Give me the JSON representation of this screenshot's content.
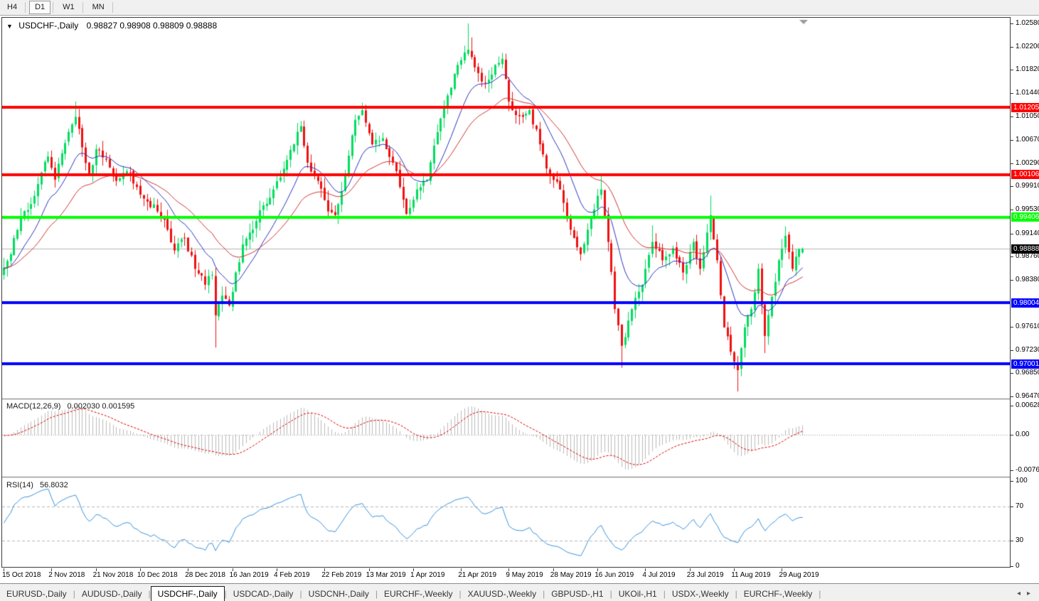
{
  "ui": {
    "toolbar": {
      "timeframes": [
        {
          "label": "H4",
          "active": false
        },
        {
          "label": "D1",
          "active": true
        },
        {
          "label": "W1",
          "active": false
        },
        {
          "label": "MN",
          "active": false
        }
      ]
    },
    "chart_header": {
      "dropdown_icon": "▼",
      "title": "USDCHF-,Daily",
      "ohlc": "0.98827 0.98908 0.98809 0.98888"
    },
    "tabs": {
      "items": [
        {
          "label": "EURUSD-,Daily",
          "active": false
        },
        {
          "label": "AUDUSD-,Daily",
          "active": false
        },
        {
          "label": "USDCHF-,Daily",
          "active": true
        },
        {
          "label": "USDCAD-,Daily",
          "active": false
        },
        {
          "label": "USDCNH-,Daily",
          "active": false
        },
        {
          "label": "EURCHF-,Weekly",
          "active": false
        },
        {
          "label": "XAUUSD-,Weekly",
          "active": false
        },
        {
          "label": "GBPUSD-,H1",
          "active": false
        },
        {
          "label": "UKOil-,H1",
          "active": false
        },
        {
          "label": "USDX-,Weekly",
          "active": false
        },
        {
          "label": "EURCHF-,Weekly",
          "active": false
        }
      ],
      "scroll_left": "◂",
      "scroll_right": "▸"
    }
  },
  "chart_data": {
    "type": "candlestick",
    "symbol": "USDCHF-",
    "timeframe": "Daily",
    "bars_total": 235,
    "last_bar": {
      "open": 0.98827,
      "high": 0.98908,
      "low": 0.98809,
      "close": 0.98888
    },
    "price_axis_ticks": [
      "1.02580",
      "1.02200",
      "1.01820",
      "1.01440",
      "1.01050",
      "1.00670",
      "1.00290",
      "0.99910",
      "0.99530",
      "0.99140",
      "0.98760",
      "0.98380",
      "0.97610",
      "0.97230",
      "0.96850",
      "0.96470"
    ],
    "levels": [
      {
        "price": 1.01205,
        "label": "1.01205",
        "color": "#ff0000"
      },
      {
        "price": 1.00106,
        "label": "1.00106",
        "color": "#ff0000"
      },
      {
        "price": 0.99406,
        "label": "0.99406",
        "color": "#00ff00"
      },
      {
        "price": 0.98004,
        "label": "0.98004",
        "color": "#0000ff"
      },
      {
        "price": 0.97001,
        "label": "0.97001",
        "color": "#0000ff"
      }
    ],
    "current_price": {
      "price": 0.98888,
      "label": "0.98888",
      "badge_color": "#000000",
      "line_color": "#b4b4b4"
    },
    "close_waypoints": [
      [
        0,
        0.9858
      ],
      [
        2,
        0.988
      ],
      [
        5,
        0.994
      ],
      [
        8,
        0.9962
      ],
      [
        10,
        0.9995
      ],
      [
        13,
        1.004
      ],
      [
        15,
        1.0002
      ],
      [
        18,
        1.0062
      ],
      [
        21,
        1.0105
      ],
      [
        23,
        1.0055
      ],
      [
        25,
        1.0012
      ],
      [
        27,
        1.0052
      ],
      [
        30,
        1.0035
      ],
      [
        33,
        1.0
      ],
      [
        36,
        1.0016
      ],
      [
        39,
        0.999
      ],
      [
        42,
        0.9966
      ],
      [
        45,
        0.995
      ],
      [
        48,
        0.992
      ],
      [
        50,
        0.9886
      ],
      [
        53,
        0.9906
      ],
      [
        56,
        0.9856
      ],
      [
        59,
        0.983
      ],
      [
        61,
        0.9846
      ],
      [
        62,
        0.978
      ],
      [
        64,
        0.9812
      ],
      [
        66,
        0.9796
      ],
      [
        68,
        0.985
      ],
      [
        70,
        0.9896
      ],
      [
        73,
        0.992
      ],
      [
        76,
        0.996
      ],
      [
        79,
        0.9986
      ],
      [
        82,
        1.002
      ],
      [
        85,
        1.006
      ],
      [
        87,
        1.009
      ],
      [
        89,
        1.003
      ],
      [
        92,
        1.0
      ],
      [
        95,
        0.995
      ],
      [
        97,
        0.9944
      ],
      [
        100,
        1.001
      ],
      [
        103,
        1.01
      ],
      [
        105,
        1.0116
      ],
      [
        108,
        1.006
      ],
      [
        111,
        1.007
      ],
      [
        114,
        1.003
      ],
      [
        116,
        0.999
      ],
      [
        118,
        0.9946
      ],
      [
        121,
        0.9986
      ],
      [
        124,
        1.0002
      ],
      [
        127,
        1.008
      ],
      [
        130,
        1.014
      ],
      [
        133,
        1.019
      ],
      [
        136,
        1.0215
      ],
      [
        138,
        1.0186
      ],
      [
        141,
        1.016
      ],
      [
        144,
        1.019
      ],
      [
        146,
        1.02
      ],
      [
        148,
        1.013
      ],
      [
        151,
        1.0106
      ],
      [
        154,
        1.0116
      ],
      [
        157,
        1.006
      ],
      [
        160,
        1.001
      ],
      [
        163,
        0.9986
      ],
      [
        166,
        0.992
      ],
      [
        169,
        0.988
      ],
      [
        172,
        0.994
      ],
      [
        175,
        0.9986
      ],
      [
        177,
        0.99
      ],
      [
        179,
        0.979
      ],
      [
        181,
        0.973
      ],
      [
        184,
        0.979
      ],
      [
        187,
        0.983
      ],
      [
        190,
        0.99
      ],
      [
        193,
        0.987
      ],
      [
        196,
        0.989
      ],
      [
        199,
        0.985
      ],
      [
        202,
        0.99
      ],
      [
        204,
        0.9856
      ],
      [
        207,
        0.9944
      ],
      [
        209,
        0.987
      ],
      [
        211,
        0.976
      ],
      [
        213,
        0.972
      ],
      [
        215,
        0.969
      ],
      [
        217,
        0.976
      ],
      [
        219,
        0.979
      ],
      [
        221,
        0.9856
      ],
      [
        223,
        0.9746
      ],
      [
        225,
        0.981
      ],
      [
        227,
        0.987
      ],
      [
        229,
        0.991
      ],
      [
        231,
        0.9856
      ],
      [
        232,
        0.9876
      ],
      [
        234,
        0.98888
      ]
    ],
    "spikes": [
      [
        21,
        "high",
        1.013
      ],
      [
        62,
        "low",
        0.9727
      ],
      [
        105,
        "high",
        1.0128
      ],
      [
        136,
        "high",
        1.0258
      ],
      [
        137,
        "high",
        1.0235
      ],
      [
        175,
        "high",
        1.001
      ],
      [
        181,
        "low",
        0.9694
      ],
      [
        190,
        "high",
        0.9927
      ],
      [
        207,
        "high",
        0.9976
      ],
      [
        215,
        "low",
        0.9655
      ],
      [
        223,
        "low",
        0.9718
      ]
    ],
    "moving_averages": [
      {
        "name": "fast",
        "period": 13,
        "color": "#2b35c0"
      },
      {
        "name": "slow",
        "period": 30,
        "color": "#d23434"
      }
    ],
    "indicators": {
      "macd": {
        "label": "MACD(12,26,9)",
        "values_text": "0.002030 0.001595",
        "params": [
          12,
          26,
          9
        ],
        "axis": [
          "0.006286",
          "0.00",
          "-0.00762"
        ],
        "histogram_color": "#bcbcbc",
        "signal_color": "#dd0000"
      },
      "rsi": {
        "label": "RSI(14)",
        "value": "56.8032",
        "period": 14,
        "levels": [
          70,
          30
        ],
        "axis": [
          "100",
          "70",
          "30",
          "0"
        ],
        "line_color": "#3a93dc",
        "level_line_color": "#b8b8b8"
      }
    },
    "date_labels": [
      {
        "bar": 0,
        "text": "15 Oct 2018"
      },
      {
        "bar": 14,
        "text": "2 Nov 2018"
      },
      {
        "bar": 27,
        "text": "21 Nov 2018"
      },
      {
        "bar": 40,
        "text": "10 Dec 2018"
      },
      {
        "bar": 54,
        "text": "28 Dec 2018"
      },
      {
        "bar": 67,
        "text": "16 Jan 2019"
      },
      {
        "bar": 80,
        "text": "4 Feb 2019"
      },
      {
        "bar": 94,
        "text": "22 Feb 2019"
      },
      {
        "bar": 107,
        "text": "13 Mar 2019"
      },
      {
        "bar": 120,
        "text": "1 Apr 2019"
      },
      {
        "bar": 134,
        "text": "21 Apr 2019"
      },
      {
        "bar": 148,
        "text": "9 May 2019"
      },
      {
        "bar": 161,
        "text": "28 May 2019"
      },
      {
        "bar": 174,
        "text": "16 Jun 2019"
      },
      {
        "bar": 188,
        "text": "4 Jul 2019"
      },
      {
        "bar": 201,
        "text": "23 Jul 2019"
      },
      {
        "bar": 214,
        "text": "11 Aug 2019"
      },
      {
        "bar": 228,
        "text": "29 Aug 2019"
      }
    ],
    "colors": {
      "up_candle": "#00dd5e",
      "down_candle": "#ef1111",
      "background": "#ffffff"
    }
  }
}
